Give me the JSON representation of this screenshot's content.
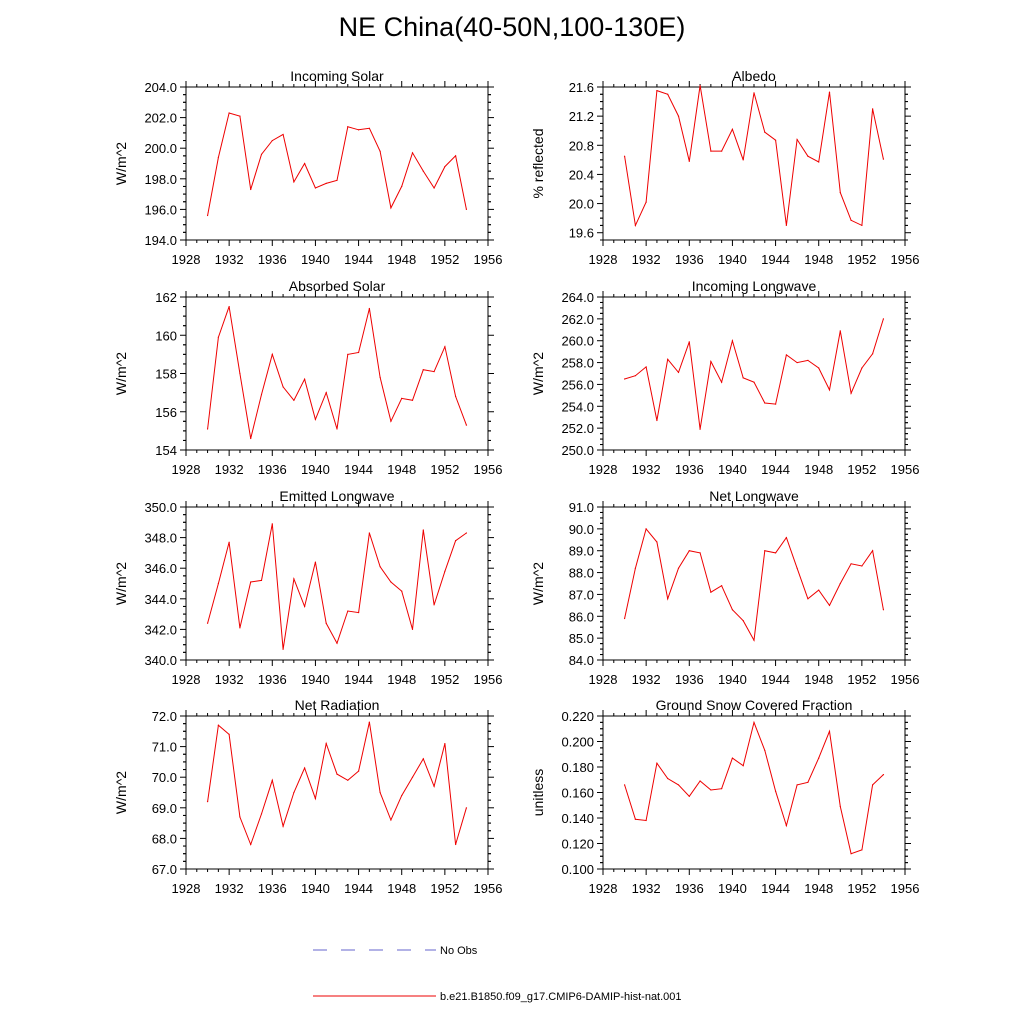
{
  "title": "NE China(40-50N,100-130E)",
  "x_ticks": [
    1928,
    1932,
    1936,
    1940,
    1944,
    1948,
    1952,
    1956
  ],
  "legend": {
    "placement": "bottom-center",
    "entries": [
      {
        "label": "No Obs",
        "color": "#6666cc",
        "style": "dashed"
      },
      {
        "label": "b.e21.B1850.f09_g17.CMIP6-DAMIP-hist-nat.001",
        "color": "#ee0000",
        "style": "solid"
      }
    ]
  },
  "chart_data": [
    {
      "type": "line",
      "title": "Incoming Solar",
      "xlabel": "",
      "ylabel": "W/m^2",
      "xlim": [
        1928,
        1956
      ],
      "ylim": [
        194.0,
        204.0
      ],
      "yticks": [
        "194.0",
        "196.0",
        "198.0",
        "200.0",
        "202.0",
        "204.0"
      ],
      "series": [
        {
          "name": "b.e21.B1850.f09_g17.CMIP6-DAMIP-hist-nat.001",
          "color": "#ee0000",
          "x": [
            1930,
            1931,
            1932,
            1933,
            1934,
            1935,
            1936,
            1937,
            1938,
            1939,
            1940,
            1941,
            1942,
            1943,
            1944,
            1945,
            1946,
            1947,
            1948,
            1949,
            1950,
            1951,
            1952,
            1953,
            1954
          ],
          "y": [
            195.6,
            199.4,
            202.3,
            202.1,
            197.3,
            199.6,
            200.5,
            200.9,
            197.8,
            199.0,
            197.4,
            197.7,
            197.9,
            201.4,
            201.2,
            201.3,
            199.8,
            196.1,
            197.5,
            199.7,
            198.5,
            197.4,
            198.8,
            199.5,
            196.0
          ]
        }
      ]
    },
    {
      "type": "line",
      "title": "Albedo",
      "xlabel": "",
      "ylabel": "% reflected",
      "xlim": [
        1928,
        1956
      ],
      "ylim": [
        19.5,
        21.6
      ],
      "yticks": [
        "19.6",
        "20.0",
        "20.4",
        "20.8",
        "21.2",
        "21.6"
      ],
      "series": [
        {
          "name": "b.e21.B1850.f09_g17.CMIP6-DAMIP-hist-nat.001",
          "color": "#ee0000",
          "x": [
            1930,
            1931,
            1932,
            1933,
            1934,
            1935,
            1936,
            1937,
            1938,
            1939,
            1940,
            1941,
            1942,
            1943,
            1944,
            1945,
            1946,
            1947,
            1948,
            1949,
            1950,
            1951,
            1952,
            1953,
            1954
          ],
          "y": [
            20.65,
            19.7,
            20.02,
            21.55,
            21.5,
            21.2,
            20.58,
            21.62,
            20.72,
            20.72,
            21.02,
            20.6,
            21.52,
            20.98,
            20.87,
            19.7,
            20.88,
            20.65,
            20.57,
            21.53,
            20.15,
            19.77,
            19.7,
            21.3,
            20.61
          ]
        }
      ]
    },
    {
      "type": "line",
      "title": "Absorbed Solar",
      "xlabel": "",
      "ylabel": "W/m^2",
      "xlim": [
        1928,
        1956
      ],
      "ylim": [
        154,
        162
      ],
      "yticks": [
        "154",
        "156",
        "158",
        "160",
        "162"
      ],
      "series": [
        {
          "name": "b.e21.B1850.f09_g17.CMIP6-DAMIP-hist-nat.001",
          "color": "#ee0000",
          "x": [
            1930,
            1931,
            1932,
            1933,
            1934,
            1935,
            1936,
            1937,
            1938,
            1939,
            1940,
            1941,
            1942,
            1943,
            1944,
            1945,
            1946,
            1947,
            1948,
            1949,
            1950,
            1951,
            1952,
            1953,
            1954
          ],
          "y": [
            155.1,
            159.9,
            161.5,
            158.0,
            154.6,
            156.9,
            159.0,
            157.3,
            156.6,
            157.7,
            155.6,
            157.0,
            155.1,
            159.0,
            159.1,
            161.4,
            157.8,
            155.5,
            156.7,
            156.6,
            158.2,
            158.1,
            159.4,
            156.8,
            155.3
          ]
        }
      ]
    },
    {
      "type": "line",
      "title": "Incoming Longwave",
      "xlabel": "",
      "ylabel": "W/m^2",
      "xlim": [
        1928,
        1956
      ],
      "ylim": [
        250.0,
        264.0
      ],
      "yticks": [
        "250.0",
        "252.0",
        "254.0",
        "256.0",
        "258.0",
        "260.0",
        "262.0",
        "264.0"
      ],
      "series": [
        {
          "name": "b.e21.B1850.f09_g17.CMIP6-DAMIP-hist-nat.001",
          "color": "#ee0000",
          "x": [
            1930,
            1931,
            1932,
            1933,
            1934,
            1935,
            1936,
            1937,
            1938,
            1939,
            1940,
            1941,
            1942,
            1943,
            1944,
            1945,
            1946,
            1947,
            1948,
            1949,
            1950,
            1951,
            1952,
            1953,
            1954
          ],
          "y": [
            256.5,
            256.8,
            257.6,
            252.7,
            258.3,
            257.1,
            259.9,
            251.9,
            258.1,
            256.2,
            260.0,
            256.6,
            256.2,
            254.3,
            254.2,
            258.7,
            258.0,
            258.2,
            257.5,
            255.5,
            260.9,
            255.2,
            257.5,
            258.8,
            262.0
          ]
        }
      ]
    },
    {
      "type": "line",
      "title": "Emitted Longwave",
      "xlabel": "",
      "ylabel": "W/m^2",
      "xlim": [
        1928,
        1956
      ],
      "ylim": [
        340.0,
        350.0
      ],
      "yticks": [
        "340.0",
        "342.0",
        "344.0",
        "346.0",
        "348.0",
        "350.0"
      ],
      "series": [
        {
          "name": "b.e21.B1850.f09_g17.CMIP6-DAMIP-hist-nat.001",
          "color": "#ee0000",
          "x": [
            1930,
            1931,
            1932,
            1933,
            1934,
            1935,
            1936,
            1937,
            1938,
            1939,
            1940,
            1941,
            1942,
            1943,
            1944,
            1945,
            1946,
            1947,
            1948,
            1949,
            1950,
            1951,
            1952,
            1953,
            1954
          ],
          "y": [
            342.4,
            345.0,
            347.7,
            342.1,
            345.1,
            345.2,
            348.9,
            340.7,
            345.3,
            343.5,
            346.4,
            342.4,
            341.1,
            343.2,
            343.1,
            348.3,
            346.1,
            345.1,
            344.5,
            342.0,
            348.5,
            343.6,
            345.8,
            347.8,
            348.3
          ]
        }
      ]
    },
    {
      "type": "line",
      "title": "Net Longwave",
      "xlabel": "",
      "ylabel": "W/m^2",
      "xlim": [
        1928,
        1956
      ],
      "ylim": [
        84.0,
        91.0
      ],
      "yticks": [
        "84.0",
        "85.0",
        "86.0",
        "87.0",
        "88.0",
        "89.0",
        "90.0",
        "91.0"
      ],
      "series": [
        {
          "name": "b.e21.B1850.f09_g17.CMIP6-DAMIP-hist-nat.001",
          "color": "#ee0000",
          "x": [
            1930,
            1931,
            1932,
            1933,
            1934,
            1935,
            1936,
            1937,
            1938,
            1939,
            1940,
            1941,
            1942,
            1943,
            1944,
            1945,
            1946,
            1947,
            1948,
            1949,
            1950,
            1951,
            1952,
            1953,
            1954
          ],
          "y": [
            85.9,
            88.2,
            90.0,
            89.4,
            86.8,
            88.2,
            89.0,
            88.9,
            87.1,
            87.4,
            86.3,
            85.8,
            84.9,
            89.0,
            88.9,
            89.6,
            88.2,
            86.8,
            87.2,
            86.5,
            87.5,
            88.4,
            88.3,
            89.0,
            86.3
          ]
        }
      ]
    },
    {
      "type": "line",
      "title": "Net Radiation",
      "xlabel": "",
      "ylabel": "W/m^2",
      "xlim": [
        1928,
        1956
      ],
      "ylim": [
        67.0,
        72.0
      ],
      "yticks": [
        "67.0",
        "68.0",
        "69.0",
        "70.0",
        "71.0",
        "72.0"
      ],
      "series": [
        {
          "name": "b.e21.B1850.f09_g17.CMIP6-DAMIP-hist-nat.001",
          "color": "#ee0000",
          "x": [
            1930,
            1931,
            1932,
            1933,
            1934,
            1935,
            1936,
            1937,
            1938,
            1939,
            1940,
            1941,
            1942,
            1943,
            1944,
            1945,
            1946,
            1947,
            1948,
            1949,
            1950,
            1951,
            1952,
            1953,
            1954
          ],
          "y": [
            69.2,
            71.7,
            71.4,
            68.7,
            67.8,
            68.8,
            69.9,
            68.4,
            69.5,
            70.3,
            69.3,
            71.1,
            70.1,
            69.9,
            70.2,
            71.8,
            69.5,
            68.6,
            69.4,
            70.0,
            70.6,
            69.7,
            71.1,
            67.8,
            69.0
          ]
        }
      ]
    },
    {
      "type": "line",
      "title": "Ground Snow Covered Fraction",
      "xlabel": "",
      "ylabel": "unitless",
      "xlim": [
        1928,
        1956
      ],
      "ylim": [
        0.1,
        0.22
      ],
      "yticks": [
        "0.100",
        "0.120",
        "0.140",
        "0.160",
        "0.180",
        "0.200",
        "0.220"
      ],
      "series": [
        {
          "name": "b.e21.B1850.f09_g17.CMIP6-DAMIP-hist-nat.001",
          "color": "#ee0000",
          "x": [
            1930,
            1931,
            1932,
            1933,
            1934,
            1935,
            1936,
            1937,
            1938,
            1939,
            1940,
            1941,
            1942,
            1943,
            1944,
            1945,
            1946,
            1947,
            1948,
            1949,
            1950,
            1951,
            1952,
            1953,
            1954
          ],
          "y": [
            0.166,
            0.139,
            0.138,
            0.183,
            0.171,
            0.166,
            0.157,
            0.169,
            0.162,
            0.163,
            0.187,
            0.181,
            0.215,
            0.193,
            0.161,
            0.134,
            0.166,
            0.168,
            0.187,
            0.208,
            0.149,
            0.112,
            0.115,
            0.166,
            0.174
          ]
        }
      ]
    }
  ]
}
